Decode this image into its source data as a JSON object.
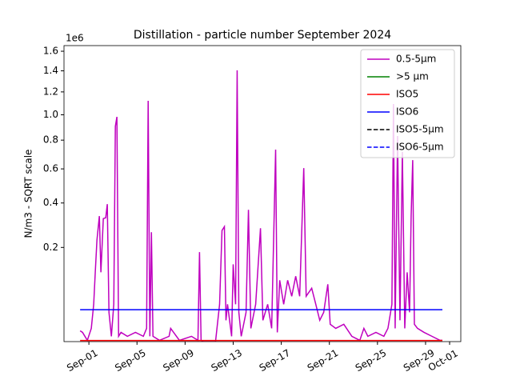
{
  "chart_data": {
    "type": "line",
    "title": "Distillation - particle number September 2024",
    "ylabel": "N/m3 - SQRT scale",
    "offset_text": "1e6",
    "yscale": "sqrt",
    "xlim": [
      -1.07,
      31.93
    ],
    "ylim": [
      0.003,
      1.66
    ],
    "xticks": [
      {
        "value": 1,
        "label": "Sep-01"
      },
      {
        "value": 5,
        "label": "Sep-05"
      },
      {
        "value": 9,
        "label": "Sep-09"
      },
      {
        "value": 13,
        "label": "Sep-13"
      },
      {
        "value": 17,
        "label": "Sep-17"
      },
      {
        "value": 21,
        "label": "Sep-21"
      },
      {
        "value": 25,
        "label": "Sep-25"
      },
      {
        "value": 29,
        "label": "Sep-29"
      },
      {
        "value": 31,
        "label": "Oct-01"
      }
    ],
    "yticks": [
      0.2,
      0.4,
      0.6,
      0.8,
      {
        "value": 1,
        "label": "1.0"
      },
      1.2,
      1.4,
      1.6
    ],
    "legend": "upper right",
    "series": [
      {
        "name": "0.5-5µm",
        "color": "#bf00bf",
        "linestyle": "solid",
        "x": [
          0.27,
          0.47,
          0.87,
          1.2,
          1.4,
          1.53,
          1.67,
          1.87,
          2.0,
          2.2,
          2.4,
          2.53,
          2.67,
          2.87,
          3.07,
          3.2,
          3.33,
          3.47,
          3.67,
          4.2,
          4.87,
          5.53,
          5.8,
          5.93,
          6.07,
          6.2,
          6.33,
          6.87,
          7.67,
          7.8,
          8.53,
          9.53,
          10.07,
          10.2,
          10.33,
          10.53,
          11.53,
          11.87,
          12.07,
          12.27,
          12.4,
          12.53,
          12.87,
          13.0,
          13.2,
          13.33,
          13.47,
          13.67,
          14.07,
          14.27,
          14.47,
          14.87,
          15.27,
          15.47,
          15.87,
          16.2,
          16.53,
          16.67,
          16.87,
          17.2,
          17.53,
          17.87,
          18.2,
          18.53,
          18.87,
          19.07,
          19.53,
          19.87,
          20.2,
          20.53,
          20.87,
          21.07,
          21.53,
          22.2,
          22.87,
          23.53,
          23.87,
          24.2,
          24.87,
          25.53,
          25.87,
          26.2,
          26.33,
          26.47,
          26.67,
          26.87,
          27.07,
          27.27,
          27.47,
          27.67,
          27.8,
          27.93,
          28.07,
          28.33,
          28.87,
          29.53,
          30.2,
          30.4
        ],
        "values": [
          0.01,
          0.0087,
          0.0036,
          0.0121,
          0.0442,
          0.118,
          0.228,
          0.334,
          0.118,
          0.322,
          0.326,
          0.394,
          0.0313,
          0.0059,
          0.0442,
          0.906,
          0.983,
          0.0059,
          0.0087,
          0.0059,
          0.0087,
          0.0059,
          0.0121,
          1.12,
          0.0059,
          0.261,
          0.0059,
          0.0036,
          0.0059,
          0.0121,
          0.0036,
          0.0059,
          0.0036,
          0.183,
          0.0036,
          0.0029,
          0.0029,
          0.0442,
          0.268,
          0.285,
          0.0206,
          0.0442,
          0.0059,
          0.142,
          0.0442,
          1.405,
          0.0313,
          0.0059,
          0.0313,
          0.365,
          0.0121,
          0.0442,
          0.278,
          0.0206,
          0.0442,
          0.0121,
          0.731,
          0.0087,
          0.0964,
          0.0442,
          0.0964,
          0.0594,
          0.107,
          0.0594,
          0.605,
          0.0594,
          0.0768,
          0.0442,
          0.0206,
          0.0313,
          0.0863,
          0.0161,
          0.0121,
          0.0161,
          0.0059,
          0.0036,
          0.0121,
          0.0059,
          0.0087,
          0.0059,
          0.0121,
          0.0442,
          1.092,
          0.0121,
          0.831,
          0.0206,
          0.714,
          0.0121,
          0.118,
          0.0313,
          0.334,
          0.658,
          0.0161,
          0.0121,
          0.0087,
          0.0059,
          0.0036,
          0.0036
        ]
      },
      {
        "name": ">5 µm",
        "color": "#008000",
        "linestyle": "solid",
        "x": [
          0.27,
          30.4
        ],
        "values": [
          0.0003,
          0.0003
        ]
      },
      {
        "name": "ISO5",
        "color": "#ff0000",
        "linestyle": "solid",
        "x": [
          0.27,
          30.4
        ],
        "values": [
          0.00352,
          0.00352
        ]
      },
      {
        "name": "ISO6",
        "color": "#0000ff",
        "linestyle": "solid",
        "x": [
          0.27,
          30.4
        ],
        "values": [
          0.0352,
          0.0352
        ]
      },
      {
        "name": "ISO5-5µm",
        "color": "#000000",
        "linestyle": "dashed",
        "x": [
          0.27,
          30.4
        ],
        "values": [
          2.9e-05,
          2.9e-05
        ]
      },
      {
        "name": "ISO6-5µm",
        "color": "#0000ff",
        "linestyle": "dashed",
        "x": [
          0.27,
          30.4
        ],
        "values": [
          0.000293,
          0.000293
        ]
      }
    ]
  }
}
